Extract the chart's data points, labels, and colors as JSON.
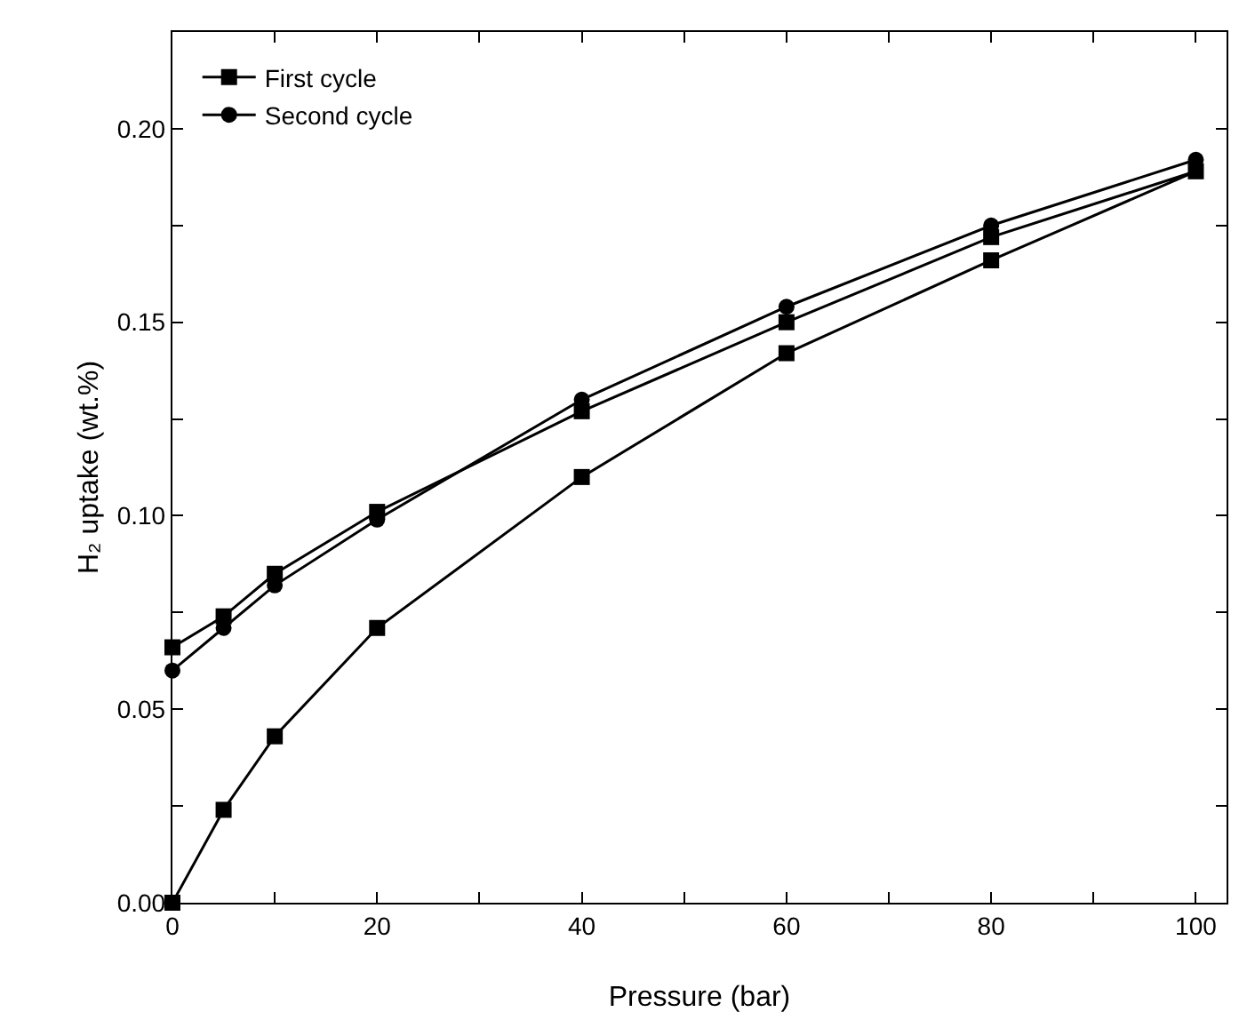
{
  "chart_data": {
    "type": "line",
    "xlabel": "Pressure (bar)",
    "ylabel": "H₂ uptake (wt.%)",
    "xlim": [
      0,
      103
    ],
    "ylim": [
      0,
      0.225
    ],
    "xticks": [
      0,
      {
        "value": 10,
        "label": null
      },
      20,
      {
        "value": 30,
        "label": null
      },
      40,
      {
        "value": 50,
        "label": null
      },
      60,
      {
        "value": 70,
        "label": null
      },
      80,
      {
        "value": 90,
        "label": null
      },
      100
    ],
    "yticks": [
      "0.00",
      {
        "value": 0.025,
        "label": null
      },
      {
        "value": 0.05,
        "label": "0.05"
      },
      {
        "value": 0.075,
        "label": null
      },
      {
        "value": 0.1,
        "label": "0.10"
      },
      {
        "value": 0.125,
        "label": null
      },
      {
        "value": 0.15,
        "label": "0.15"
      },
      {
        "value": 0.175,
        "label": null
      },
      {
        "value": 0.2,
        "label": "0.20"
      }
    ],
    "grid": false,
    "legend": "top left",
    "series": [
      {
        "name": "First cycle",
        "color": "#000000",
        "marker": "square",
        "x": [
          0,
          5,
          10,
          20,
          40,
          60,
          80,
          100,
          80,
          60,
          40,
          20,
          10,
          5,
          0
        ],
        "values": [
          0,
          0.024,
          0.043,
          0.071,
          0.11,
          0.142,
          0.166,
          0.189,
          0.172,
          0.15,
          0.127,
          0.101,
          0.085,
          0.074,
          0.066
        ]
      },
      {
        "name": "Second cycle",
        "color": "#000000",
        "marker": "circle",
        "x": [
          0,
          5,
          10,
          20,
          40,
          60,
          80,
          100
        ],
        "values": [
          0.06,
          0.071,
          0.082,
          0.099,
          0.13,
          0.154,
          0.175,
          0.192
        ]
      }
    ]
  }
}
